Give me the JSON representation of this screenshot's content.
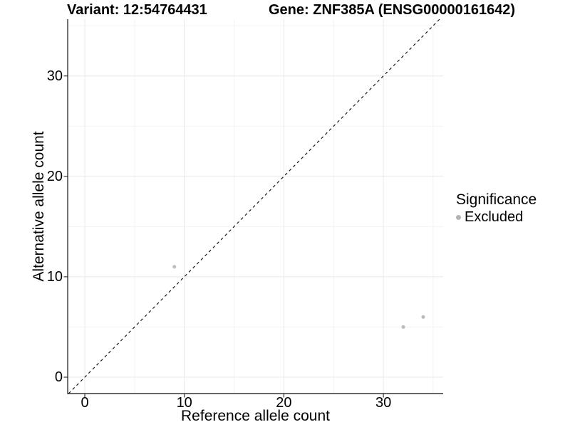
{
  "titles": {
    "variant": "Variant: 12:54764431",
    "gene": "Gene: ZNF385A (ENSG00000161642)"
  },
  "chart_data": {
    "type": "scatter",
    "title_left": "Variant: 12:54764431",
    "title_right": "Gene: ZNF385A (ENSG00000161642)",
    "xlabel": "Reference allele count",
    "ylabel": "Alternative allele count",
    "x_ticks": [
      0,
      10,
      20,
      30
    ],
    "y_ticks": [
      0,
      10,
      20,
      30
    ],
    "x_minor_ticks": [
      5,
      15,
      25,
      35
    ],
    "y_minor_ticks": [
      5,
      15,
      25,
      35
    ],
    "xlim": [
      -1.7,
      36.0
    ],
    "ylim": [
      -1.6,
      35.7
    ],
    "grid": true,
    "identity_line": {
      "style": "dashed",
      "slope": 1,
      "intercept": 0
    },
    "series": [
      {
        "name": "Excluded",
        "points": [
          {
            "x": 9,
            "y": 11
          },
          {
            "x": 32,
            "y": 5
          },
          {
            "x": 34,
            "y": 6
          }
        ]
      }
    ],
    "legend": {
      "title": "Significance",
      "position": "right",
      "items": [
        {
          "label": "Excluded"
        }
      ]
    }
  },
  "colors": {
    "point": "#bebebe",
    "legend_point": "#b3b3b3",
    "grid_major": "#e8e8e8",
    "grid_minor": "#f3f3f3",
    "axis_line": "#333333",
    "identity_line": "#1a1a1a",
    "text": "#000000",
    "background": "#ffffff"
  }
}
